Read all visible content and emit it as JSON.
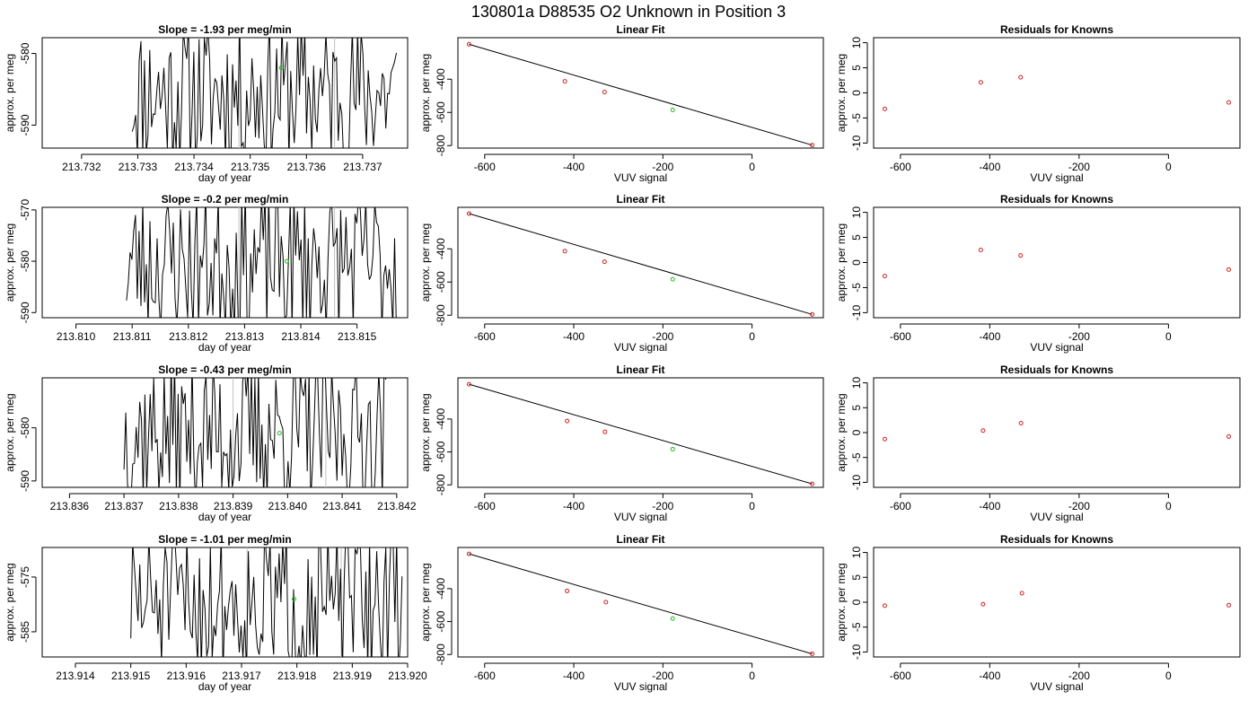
{
  "figure": {
    "title": "130801a     D88535   O2 Unknown in Position  3"
  },
  "colors": {
    "trace": "#000000",
    "known_point": "#cc2222",
    "unknown_point": "#22bb22",
    "fit_line": "#000000",
    "vline": "#c0c0c0"
  },
  "chart_data": [
    {
      "type": "line",
      "title": "Slope =  -1.93  per meg/min",
      "xlabel": "day of year",
      "ylabel": "approx. per meg",
      "xlim": [
        213.7313,
        213.7378
      ],
      "ylim": [
        -593.2,
        -577.8
      ],
      "xticks": [
        213.732,
        213.733,
        213.734,
        213.735,
        213.736,
        213.737
      ],
      "xtick_labels": [
        "213.732",
        "213.733",
        "213.734",
        "213.735",
        "213.736",
        "213.737"
      ],
      "yticks": [
        -590,
        -580
      ],
      "ytick_labels": [
        "-590",
        "-580"
      ],
      "trace_start": 213.7329,
      "trace_end": 213.7376,
      "seed": 11,
      "vlines": [
        213.7348,
        213.7365
      ],
      "unknown_point": {
        "x": 213.73555,
        "y": -582
      }
    },
    {
      "type": "scatter",
      "title": "Linear Fit",
      "xlabel": "VUV signal",
      "ylabel": "approx. per meg",
      "xlim": [
        -660,
        160
      ],
      "ylim": [
        -815,
        -150
      ],
      "xticks": [
        -600,
        -400,
        -200,
        0
      ],
      "xtick_labels": [
        "-600",
        "-400",
        "-200",
        "0"
      ],
      "yticks": [
        -800,
        -600,
        -400
      ],
      "ytick_labels": [
        "-800",
        "-600",
        "-400"
      ],
      "known": {
        "x": [
          -635,
          -420,
          -331,
          135
        ],
        "y": [
          -190,
          -413,
          -478,
          -797
        ]
      },
      "unknown": {
        "x": -178,
        "y": -585
      },
      "fit": {
        "x": [
          -635,
          135
        ],
        "y": [
          -190,
          -797
        ]
      }
    },
    {
      "type": "scatter",
      "title": "Residuals for Knowns",
      "xlabel": "VUV signal",
      "ylabel": "approx. per meg",
      "xlim": [
        -660,
        160
      ],
      "ylim": [
        -11,
        11
      ],
      "xticks": [
        -600,
        -400,
        -200,
        0
      ],
      "xtick_labels": [
        "-600",
        "-400",
        "-200",
        "0"
      ],
      "yticks": [
        -10,
        -5,
        0,
        5,
        10
      ],
      "ytick_labels": [
        "-10",
        "-5",
        "0",
        "5",
        "10"
      ],
      "known": {
        "x": [
          -635,
          -420,
          -331,
          135
        ],
        "y": [
          -3.2,
          2.1,
          3.1,
          -1.9
        ]
      }
    },
    {
      "type": "line",
      "title": "Slope =  -0.2  per meg/min",
      "xlabel": "day of year",
      "ylabel": "approx. per meg",
      "xlim": [
        213.8094,
        213.8159
      ],
      "ylim": [
        -591,
        -569.5
      ],
      "xticks": [
        213.81,
        213.811,
        213.812,
        213.813,
        213.814,
        213.815
      ],
      "xtick_labels": [
        "213.810",
        "213.811",
        "213.812",
        "213.813",
        "213.814",
        "213.815"
      ],
      "yticks": [
        -590,
        -580,
        -570
      ],
      "ytick_labels": [
        "-590",
        "-580",
        "-570"
      ],
      "trace_start": 213.8109,
      "trace_end": 213.8157,
      "seed": 23,
      "vlines": [
        213.8129,
        213.8146
      ],
      "unknown_point": {
        "x": 213.81375,
        "y": -580
      }
    },
    {
      "type": "scatter",
      "title": "Linear Fit",
      "xlabel": "VUV signal",
      "ylabel": "approx. per meg",
      "xlim": [
        -660,
        160
      ],
      "ylim": [
        -815,
        -150
      ],
      "xticks": [
        -600,
        -400,
        -200,
        0
      ],
      "xtick_labels": [
        "-600",
        "-400",
        "-200",
        "0"
      ],
      "yticks": [
        -800,
        -600,
        -400
      ],
      "ytick_labels": [
        "-800",
        "-600",
        "-400"
      ],
      "known": {
        "x": [
          -635,
          -420,
          -331,
          135
        ],
        "y": [
          -188,
          -414,
          -478,
          -795
        ]
      },
      "unknown": {
        "x": -178,
        "y": -583
      },
      "fit": {
        "x": [
          -635,
          135
        ],
        "y": [
          -188,
          -795
        ]
      }
    },
    {
      "type": "scatter",
      "title": "Residuals for Knowns",
      "xlabel": "VUV signal",
      "ylabel": "approx. per meg",
      "xlim": [
        -660,
        160
      ],
      "ylim": [
        -11,
        11
      ],
      "xticks": [
        -600,
        -400,
        -200,
        0
      ],
      "xtick_labels": [
        "-600",
        "-400",
        "-200",
        "0"
      ],
      "yticks": [
        -10,
        -5,
        0,
        5,
        10
      ],
      "ytick_labels": [
        "-10",
        "-5",
        "0",
        "5",
        "10"
      ],
      "known": {
        "x": [
          -635,
          -420,
          -331,
          135
        ],
        "y": [
          -2.7,
          2.5,
          1.4,
          -1.4
        ]
      }
    },
    {
      "type": "line",
      "title": "Slope =  -0.43  per meg/min",
      "xlabel": "day of year",
      "ylabel": "approx. per meg",
      "xlim": [
        213.8355,
        213.8422
      ],
      "ylim": [
        -591.2,
        -570.6
      ],
      "xticks": [
        213.836,
        213.837,
        213.838,
        213.839,
        213.84,
        213.841,
        213.842
      ],
      "xtick_labels": [
        "213.836",
        "213.837",
        "213.838",
        "213.839",
        "213.840",
        "213.841",
        "213.842"
      ],
      "yticks": [
        -590,
        -580
      ],
      "ytick_labels": [
        "-590",
        "-580"
      ],
      "trace_start": 213.837,
      "trace_end": 213.8418,
      "seed": 37,
      "vlines": [
        213.839,
        213.8407
      ],
      "unknown_point": {
        "x": 213.83985,
        "y": -581
      }
    },
    {
      "type": "scatter",
      "title": "Linear Fit",
      "xlabel": "VUV signal",
      "ylabel": "approx. per meg",
      "xlim": [
        -660,
        160
      ],
      "ylim": [
        -815,
        -150
      ],
      "xticks": [
        -600,
        -400,
        -200,
        0
      ],
      "xtick_labels": [
        "-600",
        "-400",
        "-200",
        "0"
      ],
      "yticks": [
        -800,
        -600,
        -400
      ],
      "ytick_labels": [
        "-800",
        "-600",
        "-400"
      ],
      "known": {
        "x": [
          -635,
          -415,
          -330,
          135
        ],
        "y": [
          -189,
          -412,
          -478,
          -794
        ]
      },
      "unknown": {
        "x": -178,
        "y": -583
      },
      "fit": {
        "x": [
          -635,
          135
        ],
        "y": [
          -189,
          -794
        ]
      }
    },
    {
      "type": "scatter",
      "title": "Residuals for Knowns",
      "xlabel": "VUV signal",
      "ylabel": "approx. per meg",
      "xlim": [
        -660,
        160
      ],
      "ylim": [
        -11,
        11
      ],
      "xticks": [
        -600,
        -400,
        -200,
        0
      ],
      "xtick_labels": [
        "-600",
        "-400",
        "-200",
        "0"
      ],
      "yticks": [
        -10,
        -5,
        0,
        5,
        10
      ],
      "ytick_labels": [
        "-10",
        "-5",
        "0",
        "5",
        "10"
      ],
      "known": {
        "x": [
          -635,
          -415,
          -330,
          135
        ],
        "y": [
          -1.3,
          0.4,
          1.9,
          -0.8
        ]
      }
    },
    {
      "type": "line",
      "title": "Slope =  -1.01  per meg/min",
      "xlabel": "day of year",
      "ylabel": "approx. per meg",
      "xlim": [
        213.9134,
        213.92
      ],
      "ylim": [
        -589.6,
        -569.6
      ],
      "xticks": [
        213.914,
        213.915,
        213.916,
        213.917,
        213.918,
        213.919,
        213.92
      ],
      "xtick_labels": [
        "213.914",
        "213.915",
        "213.916",
        "213.917",
        "213.918",
        "213.919",
        "213.920"
      ],
      "yticks": [
        -585,
        -575
      ],
      "ytick_labels": [
        "-585",
        "-575"
      ],
      "trace_start": 213.915,
      "trace_end": 213.9199,
      "seed": 51,
      "vlines": [
        213.9171,
        213.9188
      ],
      "unknown_point": {
        "x": 213.91795,
        "y": -579
      }
    },
    {
      "type": "scatter",
      "title": "Linear Fit",
      "xlabel": "VUV signal",
      "ylabel": "approx. per meg",
      "xlim": [
        -660,
        160
      ],
      "ylim": [
        -815,
        -150
      ],
      "xticks": [
        -600,
        -400,
        -200,
        0
      ],
      "xtick_labels": [
        "-600",
        "-400",
        "-200",
        "0"
      ],
      "yticks": [
        -800,
        -600,
        -400
      ],
      "ytick_labels": [
        "-800",
        "-600",
        "-400"
      ],
      "known": {
        "x": [
          -635,
          -415,
          -328,
          135
        ],
        "y": [
          -189,
          -414,
          -482,
          -796
        ]
      },
      "unknown": {
        "x": -178,
        "y": -582
      },
      "fit": {
        "x": [
          -635,
          135
        ],
        "y": [
          -189,
          -796
        ]
      }
    },
    {
      "type": "scatter",
      "title": "Residuals for Knowns",
      "xlabel": "VUV signal",
      "ylabel": "approx. per meg",
      "xlim": [
        -660,
        160
      ],
      "ylim": [
        -11,
        11
      ],
      "xticks": [
        -600,
        -400,
        -200,
        0
      ],
      "xtick_labels": [
        "-600",
        "-400",
        "-200",
        "0"
      ],
      "yticks": [
        -10,
        -5,
        0,
        5,
        10
      ],
      "ytick_labels": [
        "-10",
        "-5",
        "0",
        "5",
        "10"
      ],
      "known": {
        "x": [
          -635,
          -415,
          -328,
          135
        ],
        "y": [
          -0.7,
          -0.4,
          1.8,
          -0.6
        ]
      }
    }
  ]
}
